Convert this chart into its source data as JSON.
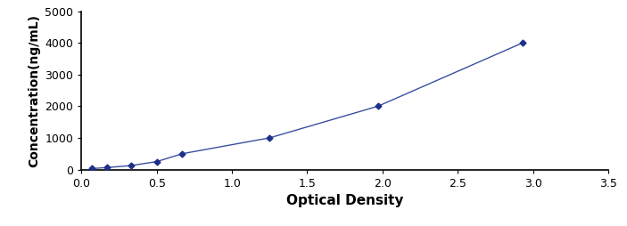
{
  "x": [
    0.07,
    0.17,
    0.33,
    0.5,
    0.67,
    1.25,
    1.97,
    2.93
  ],
  "y": [
    31,
    62,
    125,
    250,
    500,
    1000,
    2000,
    4000
  ],
  "line_color": "#3a4fa0",
  "marker_color": "#1e2f8a",
  "marker_style": "D",
  "marker_size": 3.5,
  "line_width": 1.0,
  "xlabel": "Optical Density",
  "ylabel": "Concentration(ng/mL)",
  "xlim": [
    0,
    3.5
  ],
  "ylim": [
    0,
    5000
  ],
  "xticks": [
    0,
    0.5,
    1.0,
    1.5,
    2.0,
    2.5,
    3.0,
    3.5
  ],
  "yticks": [
    0,
    1000,
    2000,
    3000,
    4000,
    5000
  ],
  "xlabel_fontsize": 11,
  "ylabel_fontsize": 10,
  "tick_fontsize": 9,
  "background_color": "#ffffff"
}
